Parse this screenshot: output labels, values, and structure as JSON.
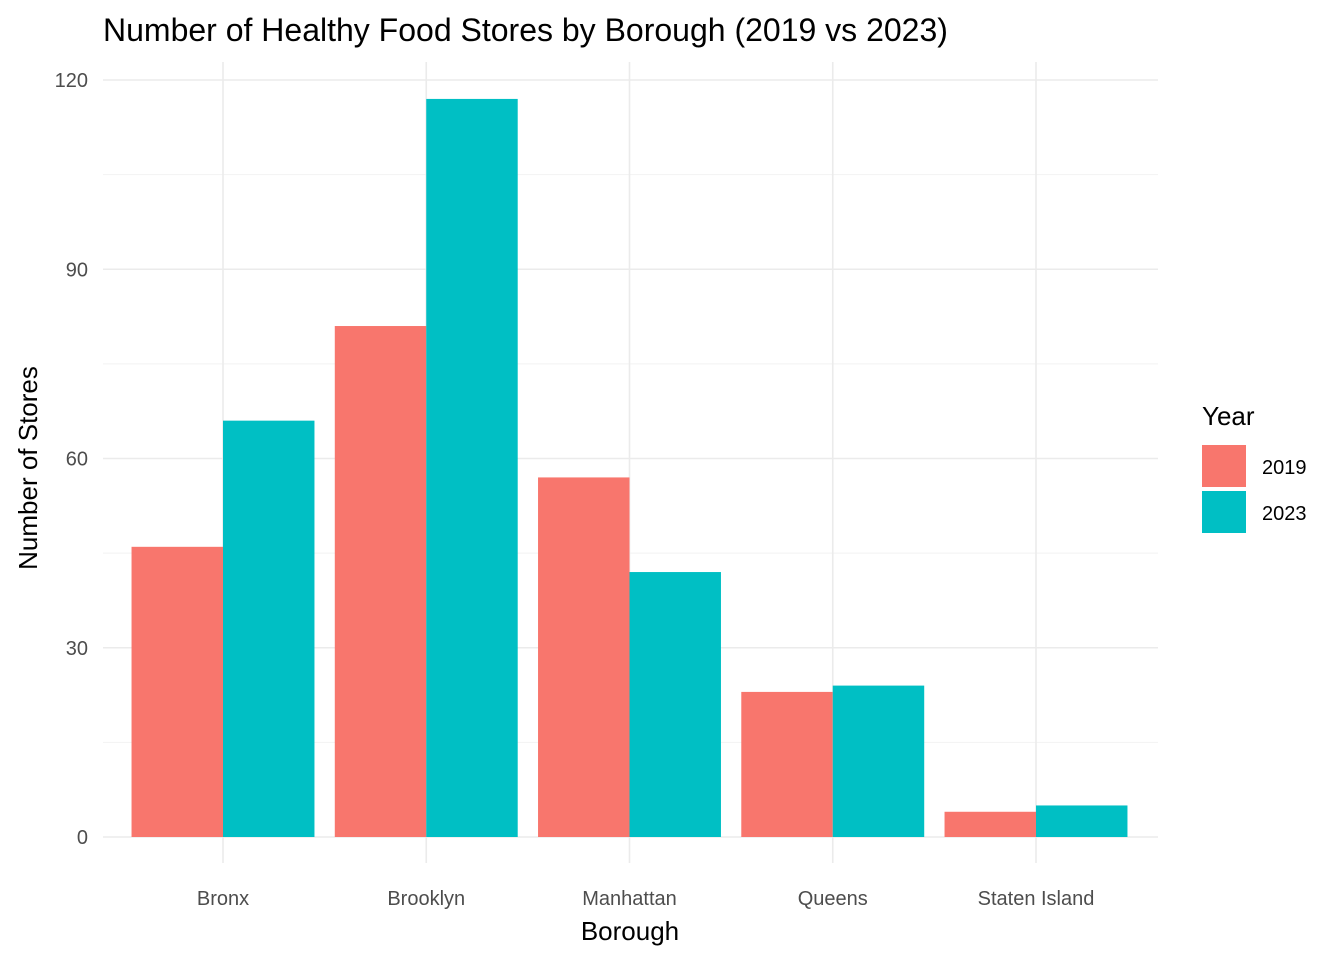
{
  "chart_data": {
    "type": "bar",
    "title": "Number of Healthy Food Stores by Borough (2019 vs 2023)",
    "xlabel": "Borough",
    "ylabel": "Number of Stores",
    "categories": [
      "Bronx",
      "Brooklyn",
      "Manhattan",
      "Queens",
      "Staten Island"
    ],
    "series": [
      {
        "name": "2019",
        "color": "#F8766D",
        "values": [
          46,
          81,
          57,
          23,
          4
        ]
      },
      {
        "name": "2023",
        "color": "#00BFC4",
        "values": [
          66,
          117,
          42,
          24,
          5
        ]
      }
    ],
    "ylim": [
      0,
      120
    ],
    "yticks": [
      0,
      30,
      60,
      90,
      120
    ],
    "grid": true,
    "legend": {
      "title": "Year",
      "position": "right"
    }
  }
}
